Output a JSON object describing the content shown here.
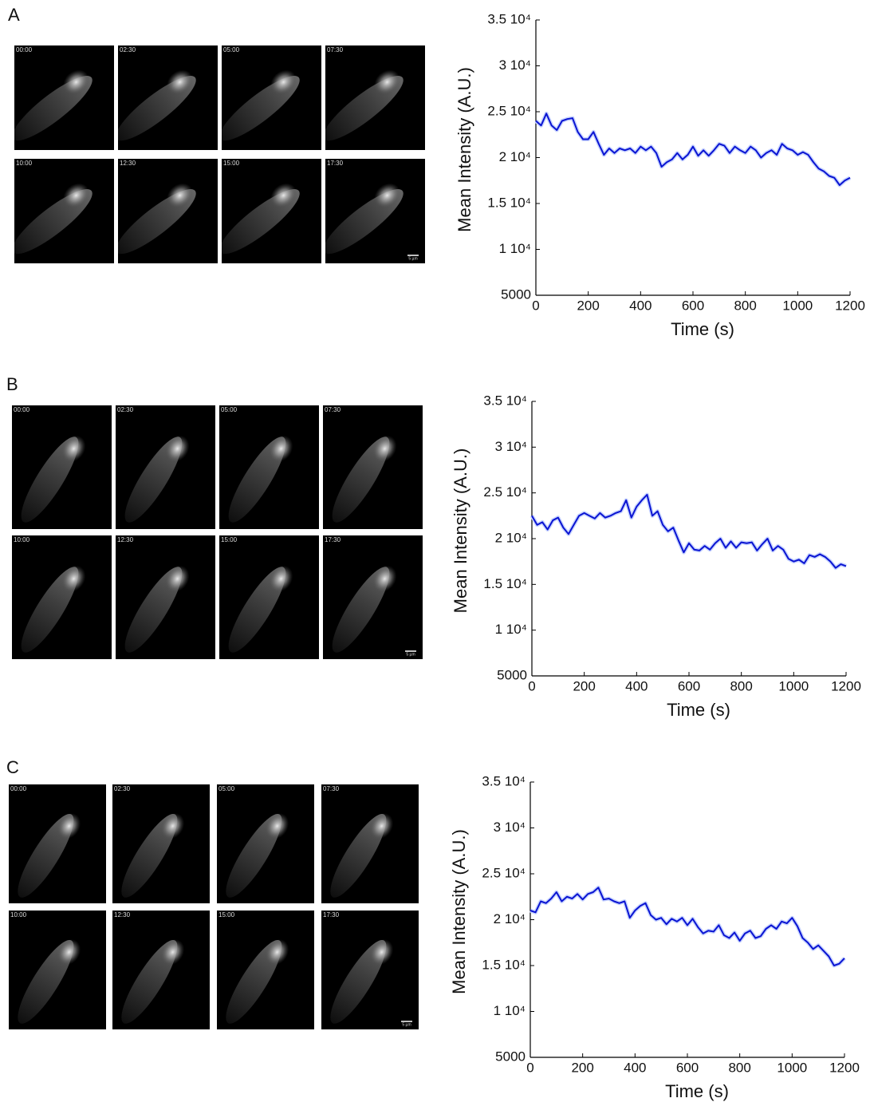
{
  "panels": [
    {
      "label": "A",
      "frames": [
        "00:00",
        "02:30",
        "05:00",
        "07:30",
        "10:00",
        "12:30",
        "15:00",
        "17:30"
      ],
      "scale_bar": "5 µm"
    },
    {
      "label": "B",
      "frames": [
        "00:00",
        "02:30",
        "05:00",
        "07:30",
        "10:00",
        "12:30",
        "15:00",
        "17:30"
      ],
      "scale_bar": "5 µm"
    },
    {
      "label": "C",
      "frames": [
        "00:00",
        "02:30",
        "05:00",
        "07:30",
        "10:00",
        "12:30",
        "15:00",
        "17:30"
      ],
      "scale_bar": "5 µm"
    }
  ],
  "chart_data": [
    {
      "type": "line",
      "xlabel": "Time (s)",
      "ylabel": "Mean Intensity (A.U.)",
      "color": "#0a14d2",
      "xlim": [
        0,
        1200
      ],
      "ylim": [
        5000,
        35000
      ],
      "xticks": [
        0,
        200,
        400,
        600,
        800,
        1000,
        1200
      ],
      "yticks": [
        5000,
        {
          "value": 10000,
          "label": "1 10⁴"
        },
        {
          "value": 15000,
          "label": "1.5 10⁴"
        },
        {
          "value": 20000,
          "label": "2 10⁴"
        },
        {
          "value": 25000,
          "label": "2.5 10⁴"
        },
        {
          "value": 30000,
          "label": "3 10⁴"
        },
        {
          "value": 35000,
          "label": "3.5 10⁴"
        }
      ],
      "x": [
        0,
        20,
        40,
        60,
        80,
        100,
        120,
        140,
        160,
        180,
        200,
        220,
        240,
        260,
        280,
        300,
        320,
        340,
        360,
        380,
        400,
        420,
        440,
        460,
        480,
        500,
        520,
        540,
        560,
        580,
        600,
        620,
        640,
        660,
        680,
        700,
        720,
        740,
        760,
        780,
        800,
        820,
        840,
        860,
        880,
        900,
        920,
        940,
        960,
        980,
        1000,
        1020,
        1040,
        1060,
        1080,
        1100,
        1120,
        1140,
        1160,
        1180,
        1200
      ],
      "values": [
        24000,
        23500,
        24800,
        23500,
        23000,
        24000,
        24200,
        24300,
        22800,
        22000,
        22000,
        22800,
        21500,
        20300,
        21000,
        20500,
        21000,
        20800,
        21000,
        20500,
        21200,
        20800,
        21200,
        20500,
        19000,
        19500,
        19800,
        20500,
        19800,
        20300,
        21200,
        20200,
        20800,
        20200,
        20800,
        21500,
        21300,
        20500,
        21200,
        20800,
        20500,
        21200,
        20800,
        20000,
        20500,
        20800,
        20300,
        21500,
        21000,
        20800,
        20300,
        20600,
        20300,
        19500,
        18800,
        18500,
        18000,
        17800,
        17000,
        17500,
        17800
      ]
    },
    {
      "type": "line",
      "xlabel": "Time (s)",
      "ylabel": "Mean Intensity (A.U.)",
      "color": "#0a14d2",
      "xlim": [
        0,
        1200
      ],
      "ylim": [
        5000,
        35000
      ],
      "xticks": [
        0,
        200,
        400,
        600,
        800,
        1000,
        1200
      ],
      "yticks": [
        5000,
        {
          "value": 10000,
          "label": "1 10⁴"
        },
        {
          "value": 15000,
          "label": "1.5 10⁴"
        },
        {
          "value": 20000,
          "label": "2 10⁴"
        },
        {
          "value": 25000,
          "label": "2.5 10⁴"
        },
        {
          "value": 30000,
          "label": "3 10⁴"
        },
        {
          "value": 35000,
          "label": "3.5 10⁴"
        }
      ],
      "x": [
        0,
        20,
        40,
        60,
        80,
        100,
        120,
        140,
        160,
        180,
        200,
        220,
        240,
        260,
        280,
        300,
        320,
        340,
        360,
        380,
        400,
        420,
        440,
        460,
        480,
        500,
        520,
        540,
        560,
        580,
        600,
        620,
        640,
        660,
        680,
        700,
        720,
        740,
        760,
        780,
        800,
        820,
        840,
        860,
        880,
        900,
        920,
        940,
        960,
        980,
        1000,
        1020,
        1040,
        1060,
        1080,
        1100,
        1120,
        1140,
        1160,
        1180,
        1200
      ],
      "values": [
        22500,
        21500,
        21800,
        21000,
        22000,
        22300,
        21200,
        20500,
        21500,
        22500,
        22800,
        22500,
        22200,
        22800,
        22300,
        22500,
        22800,
        23000,
        24200,
        22300,
        23500,
        24200,
        24800,
        22500,
        23000,
        21500,
        20800,
        21200,
        19800,
        18500,
        19500,
        18800,
        18700,
        19200,
        18800,
        19500,
        20000,
        19000,
        19700,
        19000,
        19600,
        19500,
        19600,
        18700,
        19400,
        20000,
        18700,
        19200,
        18800,
        17800,
        17500,
        17700,
        17300,
        18200,
        18000,
        18300,
        18000,
        17500,
        16800,
        17200,
        17000
      ]
    },
    {
      "type": "line",
      "xlabel": "Time (s)",
      "ylabel": "Mean Intensity (A.U.)",
      "color": "#0a14d2",
      "xlim": [
        0,
        1200
      ],
      "ylim": [
        5000,
        35000
      ],
      "xticks": [
        0,
        200,
        400,
        600,
        800,
        1000,
        1200
      ],
      "yticks": [
        5000,
        {
          "value": 10000,
          "label": "1 10⁴"
        },
        {
          "value": 15000,
          "label": "1.5 10⁴"
        },
        {
          "value": 20000,
          "label": "2 10⁴"
        },
        {
          "value": 25000,
          "label": "2.5 10⁴"
        },
        {
          "value": 30000,
          "label": "3 10⁴"
        },
        {
          "value": 35000,
          "label": "3.5 10⁴"
        }
      ],
      "x": [
        0,
        20,
        40,
        60,
        80,
        100,
        120,
        140,
        160,
        180,
        200,
        220,
        240,
        260,
        280,
        300,
        320,
        340,
        360,
        380,
        400,
        420,
        440,
        460,
        480,
        500,
        520,
        540,
        560,
        580,
        600,
        620,
        640,
        660,
        680,
        700,
        720,
        740,
        760,
        780,
        800,
        820,
        840,
        860,
        880,
        900,
        920,
        940,
        960,
        980,
        1000,
        1020,
        1040,
        1060,
        1080,
        1100,
        1120,
        1140,
        1160,
        1180,
        1200
      ],
      "values": [
        21000,
        20800,
        22000,
        21800,
        22300,
        23000,
        22000,
        22500,
        22300,
        22800,
        22200,
        22800,
        23000,
        23500,
        22200,
        22300,
        22000,
        21800,
        22000,
        20200,
        21000,
        21500,
        21800,
        20500,
        20000,
        20200,
        19500,
        20100,
        19800,
        20200,
        19400,
        20100,
        19200,
        18500,
        18800,
        18700,
        19400,
        18300,
        18000,
        18600,
        17700,
        18500,
        18800,
        18000,
        18200,
        19000,
        19400,
        19000,
        19800,
        19600,
        20200,
        19300,
        18000,
        17500,
        16800,
        17200,
        16600,
        16000,
        15000,
        15200,
        15800
      ]
    }
  ]
}
